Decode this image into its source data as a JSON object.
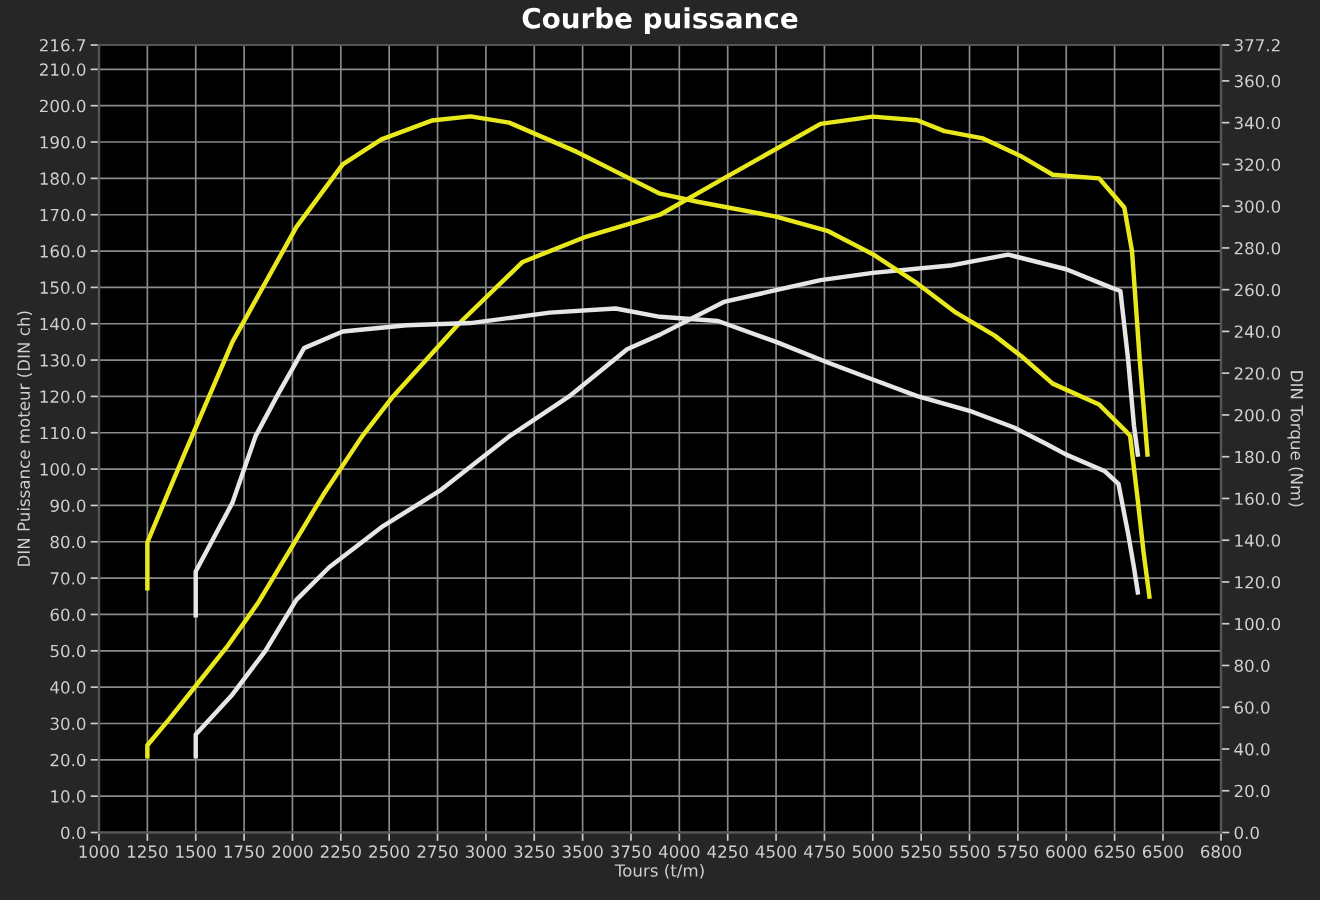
{
  "chart_data": {
    "type": "line",
    "title": "Courbe puissance",
    "xlabel": "Tours (t/m)",
    "ylabel": "DIN Puissance moteur (DIN ch)",
    "y2label": "DIN Torque (Nm)",
    "xlim": [
      1000,
      6800
    ],
    "xticks": [
      1000,
      1250,
      1500,
      1750,
      2000,
      2250,
      2500,
      2750,
      3000,
      3250,
      3500,
      3750,
      4000,
      4250,
      4500,
      4750,
      5000,
      5250,
      5500,
      5750,
      6000,
      6250,
      6500,
      6800
    ],
    "ylim": [
      0,
      216.7
    ],
    "yticks": [
      {
        "value": 0,
        "label": "0.0"
      },
      {
        "value": 10,
        "label": "10.0"
      },
      {
        "value": 20,
        "label": "20.0"
      },
      {
        "value": 30,
        "label": "30.0"
      },
      {
        "value": 40,
        "label": "40.0"
      },
      {
        "value": 50,
        "label": "50.0"
      },
      {
        "value": 60,
        "label": "60.0"
      },
      {
        "value": 70,
        "label": "70.0"
      },
      {
        "value": 80,
        "label": "80.0"
      },
      {
        "value": 90,
        "label": "90.0"
      },
      {
        "value": 100,
        "label": "100.0"
      },
      {
        "value": 110,
        "label": "110.0"
      },
      {
        "value": 120,
        "label": "120.0"
      },
      {
        "value": 130,
        "label": "130.0"
      },
      {
        "value": 140,
        "label": "140.0"
      },
      {
        "value": 150,
        "label": "150.0"
      },
      {
        "value": 160,
        "label": "160.0"
      },
      {
        "value": 170,
        "label": "170.0"
      },
      {
        "value": 180,
        "label": "180.0"
      },
      {
        "value": 190,
        "label": "190.0"
      },
      {
        "value": 200,
        "label": "200.0"
      },
      {
        "value": 210,
        "label": "210.0"
      },
      216.7
    ],
    "y2lim": [
      0,
      377.2
    ],
    "y2ticks": [
      {
        "value": 0,
        "label": "0.0"
      },
      {
        "value": 20,
        "label": "20.0"
      },
      {
        "value": 40,
        "label": "40.0"
      },
      {
        "value": 60,
        "label": "60.0"
      },
      {
        "value": 80,
        "label": "80.0"
      },
      {
        "value": 100,
        "label": "100.0"
      },
      {
        "value": 120,
        "label": "120.0"
      },
      {
        "value": 140,
        "label": "140.0"
      },
      {
        "value": 160,
        "label": "160.0"
      },
      {
        "value": 180,
        "label": "180.0"
      },
      {
        "value": 200,
        "label": "200.0"
      },
      {
        "value": 220,
        "label": "220.0"
      },
      {
        "value": 240,
        "label": "240.0"
      },
      {
        "value": 260,
        "label": "260.0"
      },
      {
        "value": 280,
        "label": "280.0"
      },
      {
        "value": 300,
        "label": "300.0"
      },
      {
        "value": 320,
        "label": "320.0"
      },
      {
        "value": 340,
        "label": "340.0"
      },
      {
        "value": 360,
        "label": "360.0"
      },
      377.2
    ],
    "grid": true,
    "legend": false,
    "line_style": "solid",
    "series": [
      {
        "color": "#e8e81c",
        "axis": "y",
        "x": [
          1250,
          1250,
          1360,
          1510,
          1660,
          1820,
          1990,
          2160,
          2360,
          2520,
          2860,
          3190,
          3520,
          3900,
          4230,
          4730,
          5000,
          5230,
          5370,
          5570,
          5770,
          5930,
          6170,
          6300,
          6340,
          6380,
          6420
        ],
        "values": [
          21,
          24,
          31,
          41,
          51,
          63,
          78,
          93,
          109,
          120,
          140,
          157,
          164,
          170,
          180,
          195,
          197,
          196,
          193,
          191,
          186,
          181,
          180,
          172,
          160,
          130,
          104
        ]
      },
      {
        "color": "#e8e81c",
        "axis": "y2",
        "x": [
          1250,
          1250,
          1440,
          1690,
          2020,
          2260,
          2460,
          2720,
          2920,
          3120,
          3470,
          3770,
          3900,
          4100,
          4500,
          4770,
          5000,
          5230,
          5430,
          5630,
          5770,
          5930,
          6170,
          6300,
          6330,
          6370,
          6400,
          6430
        ],
        "values": [
          117,
          139,
          181,
          235,
          290,
          320,
          332,
          341,
          343,
          340,
          326,
          312,
          306,
          302,
          295,
          288,
          277,
          263,
          249,
          238,
          228,
          215,
          205,
          193,
          190,
          159,
          134,
          113
        ]
      },
      {
        "color": "#e6e6e6",
        "axis": "y",
        "x": [
          1500,
          1500,
          1690,
          1860,
          2020,
          2190,
          2460,
          2760,
          3120,
          3430,
          3730,
          3900,
          4230,
          4730,
          5000,
          5400,
          5700,
          6000,
          6230,
          6280,
          6320,
          6350,
          6370
        ],
        "values": [
          21,
          27,
          38,
          50,
          64,
          73,
          84,
          94,
          109,
          120,
          133,
          137,
          146,
          152,
          154,
          156,
          159,
          155,
          150,
          149,
          130,
          112,
          104
        ]
      },
      {
        "color": "#e6e6e6",
        "axis": "y2",
        "x": [
          1500,
          1500,
          1690,
          1810,
          1920,
          2060,
          2260,
          2590,
          2920,
          3330,
          3670,
          3900,
          4200,
          4500,
          4770,
          5000,
          5230,
          5500,
          5730,
          5900,
          6000,
          6200,
          6270,
          6320,
          6350,
          6370
        ],
        "values": [
          104,
          125,
          158,
          190,
          209,
          232,
          240,
          243,
          244,
          249,
          251,
          247,
          245,
          235,
          225,
          217,
          209,
          202,
          194,
          186,
          181,
          173,
          167,
          143,
          127,
          115
        ]
      }
    ]
  }
}
